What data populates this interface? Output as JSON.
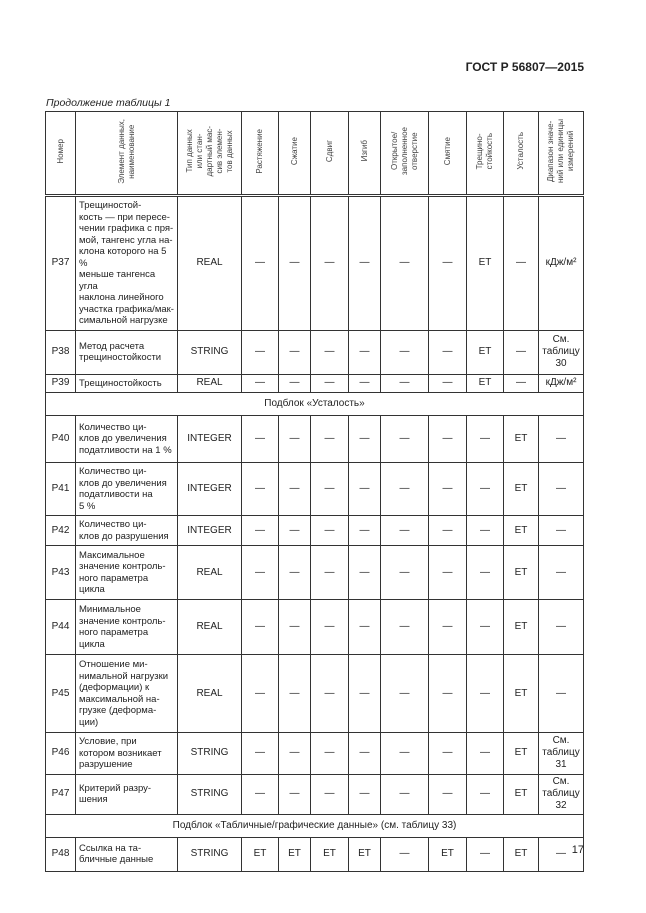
{
  "header": {
    "standard": "ГОСТ Р 56807—2015"
  },
  "caption": "Продолжение таблицы 1",
  "columns": [
    "Номер",
    "Элемент данных,\nнаименование",
    "Тип данных\nили стан-\nдартный мас-\nсив элемен-\nтов данных",
    "Растяжение",
    "Сжатие",
    "Сдвиг",
    "Изгиб",
    "Открытое/\nзаполненное\nотверстие",
    "Смятие",
    "Трещино-\nстойкость",
    "Усталость",
    "Диапазон значе-\nний или единицы\nизмерений"
  ],
  "rows": [
    {
      "type": "row",
      "num": "P37",
      "name": "    Трещиностой-\nкость — при пересе-\nчении графика с пря-\nмой, тангенс угла на-\nклона которого на 5 %\nменьше тангенса угла\nнаклона линейного\nучастка графика/мак-\nсимальной нагрузке",
      "dtype": "REAL",
      "vals": [
        "—",
        "—",
        "—",
        "—",
        "—",
        "—",
        "ET",
        "—"
      ],
      "range": "кДж/м²"
    },
    {
      "type": "row",
      "num": "P38",
      "name": "    Метод расчета\nтрещиностойкости",
      "dtype": "STRING",
      "vals": [
        "—",
        "—",
        "—",
        "—",
        "—",
        "—",
        "ET",
        "—"
      ],
      "range": "См.\nтаблицу\n30"
    },
    {
      "type": "row",
      "num": "P39",
      "name": "    Трещиностойкость",
      "dtype": "REAL",
      "vals": [
        "—",
        "—",
        "—",
        "—",
        "—",
        "—",
        "ET",
        "—"
      ],
      "range": "кДж/м²"
    },
    {
      "type": "sub",
      "text": "Подблок «Усталость»"
    },
    {
      "type": "row",
      "num": "P40",
      "name": "    Количество ци-\nклов до увеличения\nподатливости на 1 %",
      "dtype": "INTEGER",
      "vals": [
        "—",
        "—",
        "—",
        "—",
        "—",
        "—",
        "—",
        "ET"
      ],
      "range": "—"
    },
    {
      "type": "row",
      "num": "P41",
      "name": "    Количество ци-\nклов до увеличения\nподатливости на\n5 %",
      "dtype": "INTEGER",
      "vals": [
        "—",
        "—",
        "—",
        "—",
        "—",
        "—",
        "—",
        "ET"
      ],
      "range": "—"
    },
    {
      "type": "row",
      "num": "P42",
      "name": "    Количество ци-\nклов до разрушения",
      "dtype": "INTEGER",
      "vals": [
        "—",
        "—",
        "—",
        "—",
        "—",
        "—",
        "—",
        "ET"
      ],
      "range": "—"
    },
    {
      "type": "row",
      "num": "P43",
      "name": "    Максимальное\nзначение контроль-\nного параметра\nцикла",
      "dtype": "REAL",
      "vals": [
        "—",
        "—",
        "—",
        "—",
        "—",
        "—",
        "—",
        "ET"
      ],
      "range": "—"
    },
    {
      "type": "row",
      "num": "P44",
      "name": "    Минимальное\nзначение контроль-\nного параметра\nцикла",
      "dtype": "REAL",
      "vals": [
        "—",
        "—",
        "—",
        "—",
        "—",
        "—",
        "—",
        "ET"
      ],
      "range": "—"
    },
    {
      "type": "row",
      "num": "P45",
      "name": "    Отношение ми-\nнимальной нагрузки\n(деформации) к\nмаксимальной на-\nгрузке (деформа-\nции)",
      "dtype": "REAL",
      "vals": [
        "—",
        "—",
        "—",
        "—",
        "—",
        "—",
        "—",
        "ET"
      ],
      "range": "—"
    },
    {
      "type": "row",
      "num": "P46",
      "name": "    Условие, при\nкотором возникает\nразрушение",
      "dtype": "STRING",
      "vals": [
        "—",
        "—",
        "—",
        "—",
        "—",
        "—",
        "—",
        "ET"
      ],
      "range": "См.\nтаблицу\n31"
    },
    {
      "type": "row",
      "num": "P47",
      "name": "    Критерий разру-\nшения",
      "dtype": "STRING",
      "vals": [
        "—",
        "—",
        "—",
        "—",
        "—",
        "—",
        "—",
        "ET"
      ],
      "range": "См.\nтаблицу\n32"
    },
    {
      "type": "sub",
      "text": "Подблок «Табличные/графические данные» (см. таблицу 33)"
    },
    {
      "type": "row",
      "num": "P48",
      "name": "    Ссылка на та-\nбличные данные",
      "dtype": "STRING",
      "vals": [
        "ET",
        "ET",
        "ET",
        "ET",
        "—",
        "ET",
        "—",
        "ET"
      ],
      "range": "—"
    }
  ],
  "page_number": "17"
}
